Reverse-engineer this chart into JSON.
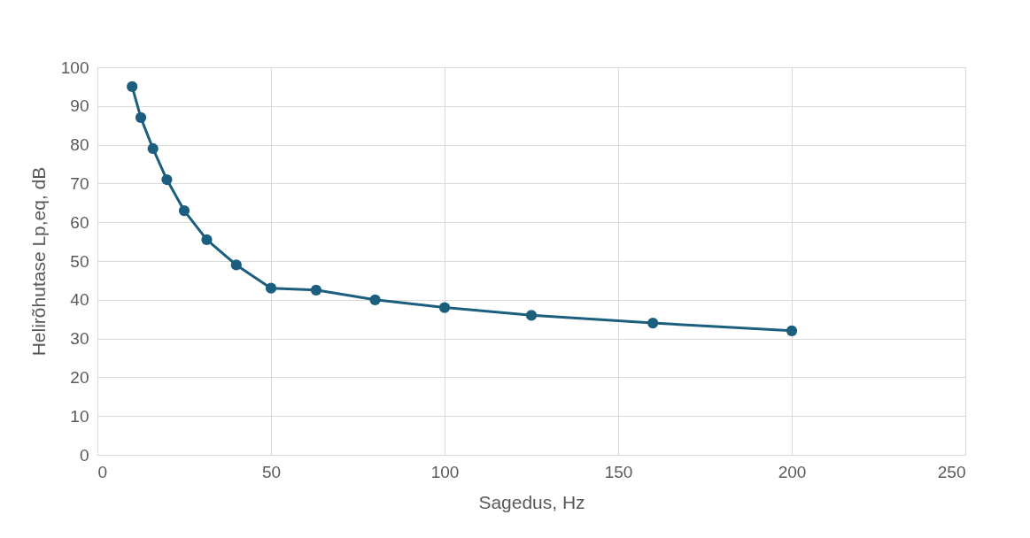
{
  "chart_data": {
    "type": "line",
    "xlabel": "Sagedus, Hz",
    "ylabel": "Helirõhutase Lp,eq, dB",
    "x": [
      10,
      12.5,
      16,
      20,
      25,
      31.5,
      40,
      50,
      63,
      80,
      100,
      125,
      160,
      200
    ],
    "series": [
      {
        "color": "#1b5e7e",
        "values": [
          95,
          87,
          79,
          71,
          63,
          55.5,
          49,
          43,
          42.5,
          40,
          38,
          36,
          34,
          32
        ]
      }
    ],
    "xlim": [
      0,
      250
    ],
    "xticks": [
      0,
      50,
      100,
      150,
      200,
      250
    ],
    "ylim": [
      0,
      100
    ],
    "yticks": [
      0,
      10,
      20,
      30,
      40,
      50,
      60,
      70,
      80,
      90,
      100
    ],
    "grid": true,
    "marker": "circle",
    "line_style": "solid"
  }
}
